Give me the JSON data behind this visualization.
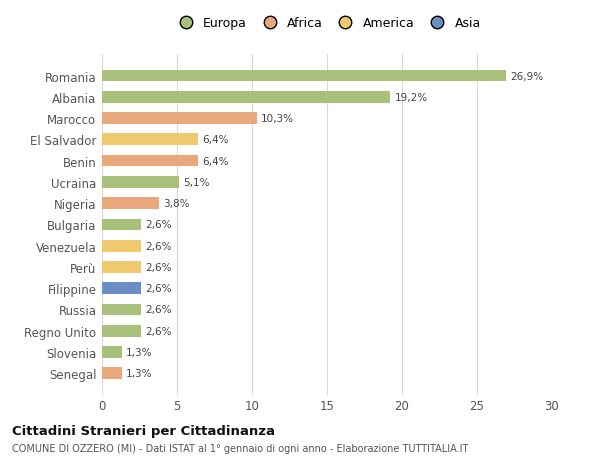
{
  "countries": [
    "Romania",
    "Albania",
    "Marocco",
    "El Salvador",
    "Benin",
    "Ucraina",
    "Nigeria",
    "Bulgaria",
    "Venezuela",
    "Perù",
    "Filippine",
    "Russia",
    "Regno Unito",
    "Slovenia",
    "Senegal"
  ],
  "values": [
    26.9,
    19.2,
    10.3,
    6.4,
    6.4,
    5.1,
    3.8,
    2.6,
    2.6,
    2.6,
    2.6,
    2.6,
    2.6,
    1.3,
    1.3
  ],
  "labels": [
    "26,9%",
    "19,2%",
    "10,3%",
    "6,4%",
    "6,4%",
    "5,1%",
    "3,8%",
    "2,6%",
    "2,6%",
    "2,6%",
    "2,6%",
    "2,6%",
    "2,6%",
    "1,3%",
    "1,3%"
  ],
  "colors": [
    "#a8c07a",
    "#a8c07a",
    "#e8a87c",
    "#f0c96e",
    "#e8a87c",
    "#a8c07a",
    "#e8a87c",
    "#a8c07a",
    "#f0c96e",
    "#f0c96e",
    "#6b8fc4",
    "#a8c07a",
    "#a8c07a",
    "#a8c07a",
    "#e8a87c"
  ],
  "legend_labels": [
    "Europa",
    "Africa",
    "America",
    "Asia"
  ],
  "legend_colors": [
    "#a8c07a",
    "#e8a87c",
    "#f0c96e",
    "#6b8fc4"
  ],
  "xlim": [
    0,
    30
  ],
  "xticks": [
    0,
    5,
    10,
    15,
    20,
    25,
    30
  ],
  "title": "Cittadini Stranieri per Cittadinanza",
  "subtitle": "COMUNE DI OZZERO (MI) - Dati ISTAT al 1° gennaio di ogni anno - Elaborazione TUTTITALIA.IT",
  "background_color": "#ffffff",
  "grid_color": "#d8d8d8",
  "bar_height": 0.55
}
